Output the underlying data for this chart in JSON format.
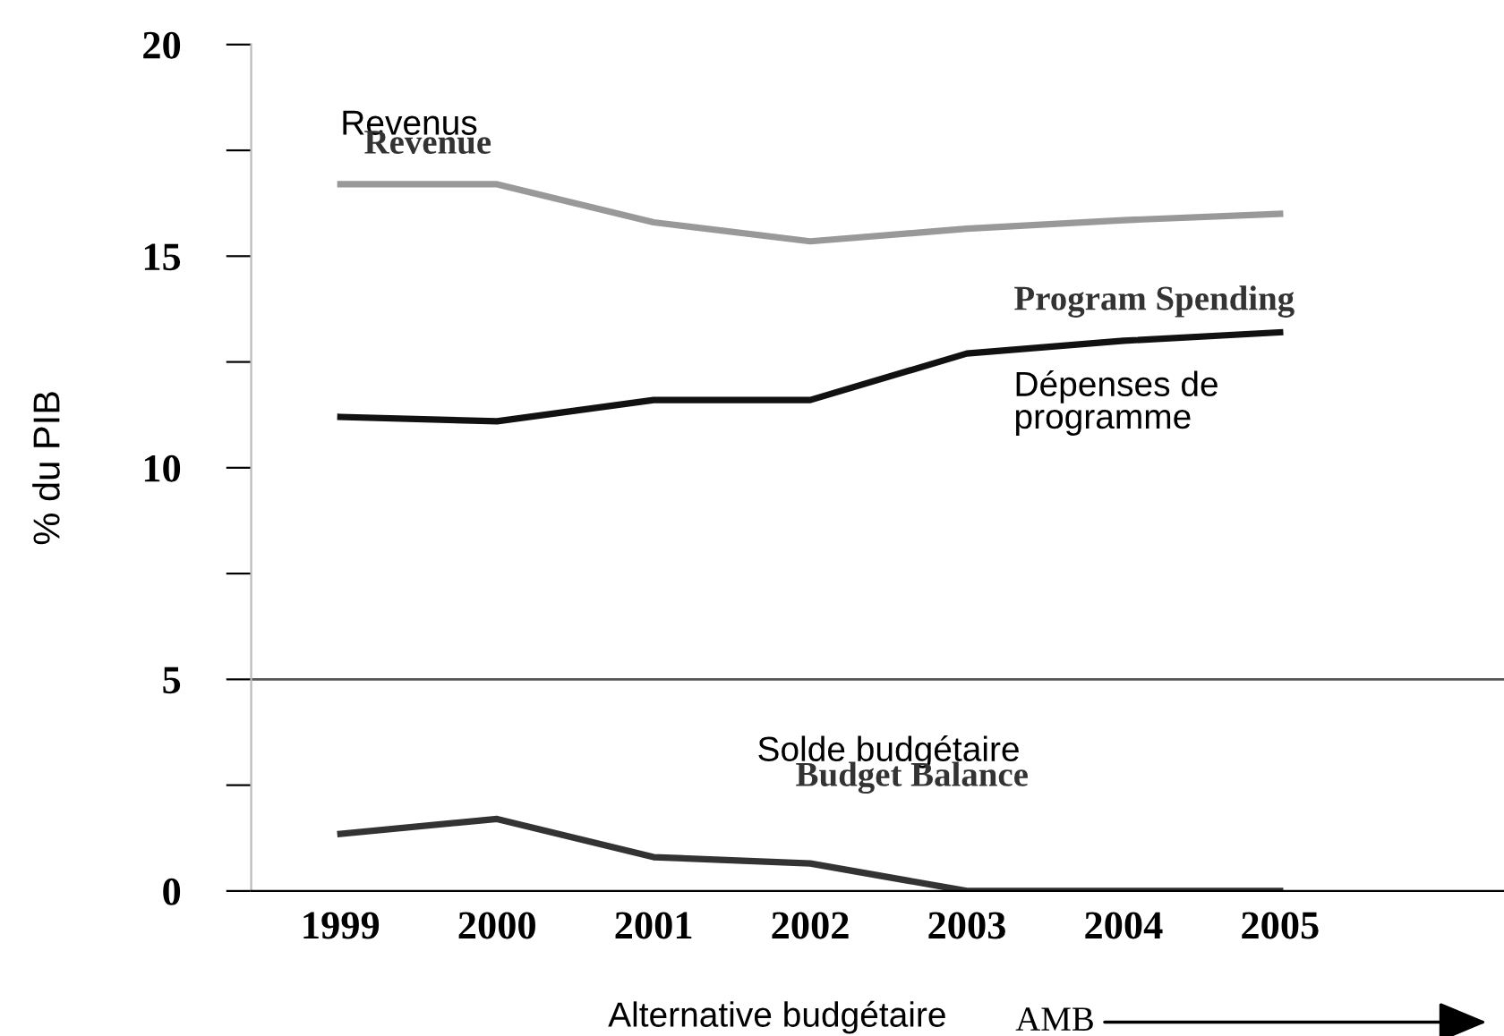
{
  "chart_data": {
    "type": "line",
    "ylabel": "% du PIB",
    "categories": [
      "1999",
      "2000",
      "2001",
      "2002",
      "2003",
      "2004",
      "2005"
    ],
    "series": [
      {
        "name": "Revenus",
        "color": "#999999",
        "values": [
          16.7,
          16.7,
          15.8,
          15.35,
          15.65,
          15.85,
          16.0
        ]
      },
      {
        "name": "Dépenses de programme",
        "color": "#111111",
        "values": [
          11.2,
          11.1,
          11.6,
          11.6,
          12.7,
          13.0,
          13.2
        ]
      },
      {
        "name": "Solde budgétaire",
        "color": "#333333",
        "values": [
          1.35,
          1.7,
          0.8,
          0.65,
          0.0,
          0.0,
          0.0
        ]
      }
    ],
    "ylim": [
      0,
      20
    ],
    "yticks": [
      0,
      {
        "value": 2.5,
        "label": null
      },
      5,
      {
        "value": 7.5,
        "label": null
      },
      10,
      {
        "value": 12.5,
        "label": null
      },
      15,
      {
        "value": 17.5,
        "label": null
      },
      20
    ],
    "ref_lines": [
      {
        "axis": "y",
        "value": 5,
        "color": "#555555"
      }
    ],
    "annotations": [
      "Revenue",
      "Program Spending",
      "Budget Balance",
      "Alternative budgétaire",
      "AMB"
    ],
    "grid": false,
    "marker": "none",
    "line_style": "solid"
  }
}
